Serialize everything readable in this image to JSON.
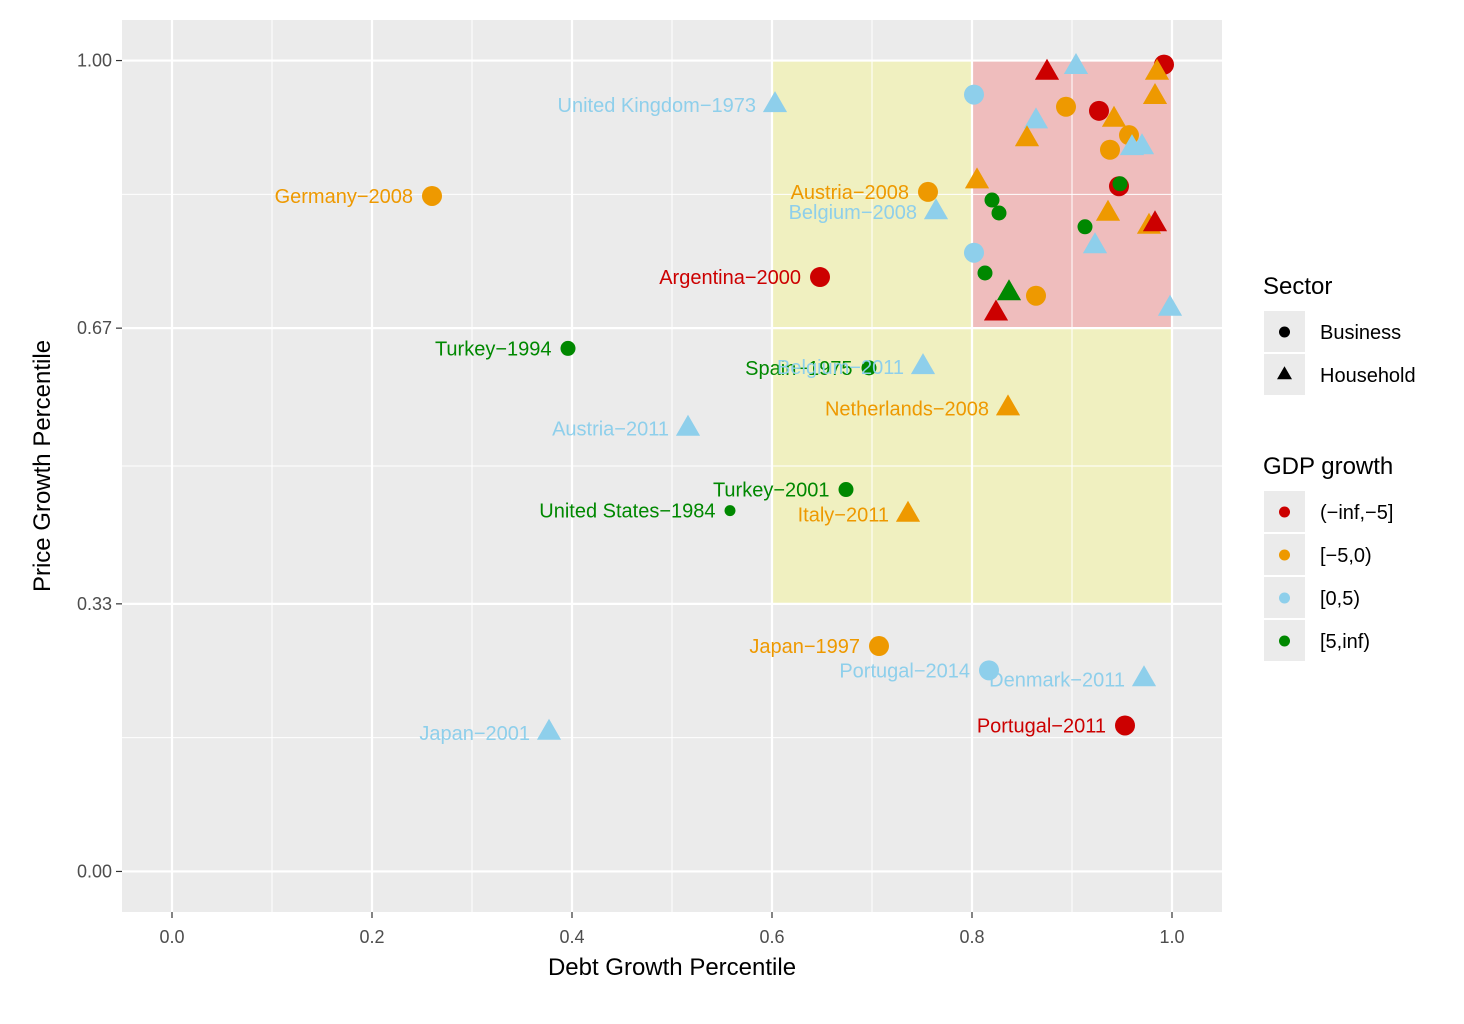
{
  "chart_data": {
    "type": "scatter",
    "xlabel": "Debt Growth Percentile",
    "ylabel": "Price Growth Percentile",
    "xlim": [
      -0.05,
      1.05
    ],
    "ylim": [
      -0.05,
      1.05
    ],
    "x_ticks": [
      0.0,
      0.2,
      0.4,
      0.6,
      0.8,
      1.0
    ],
    "x_tick_labels": [
      "0.0",
      "0.2",
      "0.4",
      "0.6",
      "0.8",
      "1.0"
    ],
    "y_ticks": [
      0.0,
      0.33,
      0.67,
      1.0
    ],
    "y_tick_labels": [
      "0.00",
      "0.33",
      "0.67",
      "1.00"
    ],
    "grid": true,
    "background": "#ebebeb",
    "legend_position": "right",
    "regions": [
      {
        "x": [
          0.6,
          1.0
        ],
        "y": [
          0.33,
          1.0
        ],
        "color": "#f0f0c0"
      },
      {
        "x": [
          0.8,
          1.0
        ],
        "y": [
          0.67,
          1.0
        ],
        "color": "#efbdbd"
      }
    ],
    "colors": {
      "(-inf,-5]": "#cc0000",
      "[-5,0)": "#ee9900",
      "[0,5)": "#8ecfeb",
      "[5,inf)": "#008800"
    },
    "legend_sector": {
      "title": "Sector",
      "items": [
        {
          "label": "Business",
          "shape": "circle"
        },
        {
          "label": "Household",
          "shape": "triangle"
        }
      ]
    },
    "legend_gdp": {
      "title": "GDP growth",
      "items": [
        {
          "label": "(−inf,−5]",
          "key": "(-inf,-5]"
        },
        {
          "label": "[−5,0)",
          "key": "[-5,0)"
        },
        {
          "label": "[0,5)",
          "key": "[0,5)"
        },
        {
          "label": "[5,inf)",
          "key": "[5,inf)"
        }
      ]
    },
    "points": [
      {
        "x": 0.26,
        "y": 0.833,
        "sector": "Business",
        "gdp": "[-5,0)",
        "size": "l",
        "label": "Germany−2008"
      },
      {
        "x": 0.603,
        "y": 0.945,
        "sector": "Household",
        "gdp": "[0,5)",
        "size": "l",
        "label": "United Kingdom−1973"
      },
      {
        "x": 0.756,
        "y": 0.838,
        "sector": "Business",
        "gdp": "[-5,0)",
        "size": "l",
        "label": "Austria−2008"
      },
      {
        "x": 0.764,
        "y": 0.813,
        "sector": "Household",
        "gdp": "[0,5)",
        "size": "l",
        "label": "Belgium−2008"
      },
      {
        "x": 0.648,
        "y": 0.733,
        "sector": "Business",
        "gdp": "(-inf,-5]",
        "size": "l",
        "label": "Argentina−2000"
      },
      {
        "x": 0.396,
        "y": 0.645,
        "sector": "Business",
        "gdp": "[5,inf)",
        "size": "m",
        "label": "Turkey−1994"
      },
      {
        "x": 0.697,
        "y": 0.621,
        "sector": "Business",
        "gdp": "[5,inf)",
        "size": "m",
        "label": "Spain−1975"
      },
      {
        "x": 0.751,
        "y": 0.622,
        "sector": "Household",
        "gdp": "[0,5)",
        "size": "l",
        "label": "Belgium−2011"
      },
      {
        "x": 0.836,
        "y": 0.571,
        "sector": "Household",
        "gdp": "[-5,0)",
        "size": "l",
        "label": "Netherlands−2008"
      },
      {
        "x": 0.516,
        "y": 0.546,
        "sector": "Household",
        "gdp": "[0,5)",
        "size": "l",
        "label": "Austria−2011"
      },
      {
        "x": 0.674,
        "y": 0.471,
        "sector": "Business",
        "gdp": "[5,inf)",
        "size": "m",
        "label": "Turkey−2001"
      },
      {
        "x": 0.558,
        "y": 0.445,
        "sector": "Business",
        "gdp": "[5,inf)",
        "size": "s",
        "label": "United States−1984"
      },
      {
        "x": 0.736,
        "y": 0.44,
        "sector": "Household",
        "gdp": "[-5,0)",
        "size": "l",
        "label": "Italy−2011"
      },
      {
        "x": 0.707,
        "y": 0.278,
        "sector": "Business",
        "gdp": "[-5,0)",
        "size": "l",
        "label": "Japan−1997"
      },
      {
        "x": 0.817,
        "y": 0.248,
        "sector": "Business",
        "gdp": "[0,5)",
        "size": "l",
        "label": "Portugal−2014"
      },
      {
        "x": 0.972,
        "y": 0.237,
        "sector": "Household",
        "gdp": "[0,5)",
        "size": "l",
        "label": "Denmark−2011"
      },
      {
        "x": 0.953,
        "y": 0.18,
        "sector": "Business",
        "gdp": "(-inf,-5]",
        "size": "l",
        "label": "Portugal−2011"
      },
      {
        "x": 0.377,
        "y": 0.171,
        "sector": "Household",
        "gdp": "[0,5)",
        "size": "l",
        "label": "Japan−2001"
      },
      {
        "x": 0.992,
        "y": 0.995,
        "sector": "Business",
        "gdp": "(-inf,-5]",
        "size": "l",
        "label": ""
      },
      {
        "x": 0.985,
        "y": 0.985,
        "sector": "Household",
        "gdp": "[-5,0)",
        "size": "l",
        "label": ""
      },
      {
        "x": 0.875,
        "y": 0.985,
        "sector": "Household",
        "gdp": "(-inf,-5]",
        "size": "l",
        "label": ""
      },
      {
        "x": 0.904,
        "y": 0.992,
        "sector": "Household",
        "gdp": "[0,5)",
        "size": "l",
        "label": ""
      },
      {
        "x": 0.802,
        "y": 0.958,
        "sector": "Business",
        "gdp": "[0,5)",
        "size": "l",
        "label": ""
      },
      {
        "x": 0.983,
        "y": 0.955,
        "sector": "Household",
        "gdp": "[-5,0)",
        "size": "l",
        "label": ""
      },
      {
        "x": 0.894,
        "y": 0.943,
        "sector": "Business",
        "gdp": "[-5,0)",
        "size": "l",
        "label": ""
      },
      {
        "x": 0.927,
        "y": 0.938,
        "sector": "Business",
        "gdp": "(-inf,-5]",
        "size": "l",
        "label": ""
      },
      {
        "x": 0.942,
        "y": 0.927,
        "sector": "Household",
        "gdp": "[-5,0)",
        "size": "l",
        "label": ""
      },
      {
        "x": 0.864,
        "y": 0.925,
        "sector": "Household",
        "gdp": "[0,5)",
        "size": "l",
        "label": ""
      },
      {
        "x": 0.957,
        "y": 0.908,
        "sector": "Business",
        "gdp": "[-5,0)",
        "size": "l",
        "label": ""
      },
      {
        "x": 0.855,
        "y": 0.903,
        "sector": "Household",
        "gdp": "[-5,0)",
        "size": "l",
        "label": ""
      },
      {
        "x": 0.938,
        "y": 0.89,
        "sector": "Business",
        "gdp": "[-5,0)",
        "size": "l",
        "label": ""
      },
      {
        "x": 0.96,
        "y": 0.892,
        "sector": "Household",
        "gdp": "[0,5)",
        "size": "l",
        "label": ""
      },
      {
        "x": 0.97,
        "y": 0.893,
        "sector": "Household",
        "gdp": "[0,5)",
        "size": "l",
        "label": ""
      },
      {
        "x": 0.805,
        "y": 0.851,
        "sector": "Household",
        "gdp": "[-5,0)",
        "size": "l",
        "label": ""
      },
      {
        "x": 0.947,
        "y": 0.845,
        "sector": "Business",
        "gdp": "(-inf,-5]",
        "size": "l",
        "label": ""
      },
      {
        "x": 0.948,
        "y": 0.848,
        "sector": "Business",
        "gdp": "[5,inf)",
        "size": "m",
        "label": ""
      },
      {
        "x": 0.82,
        "y": 0.828,
        "sector": "Business",
        "gdp": "[5,inf)",
        "size": "m",
        "label": ""
      },
      {
        "x": 0.827,
        "y": 0.812,
        "sector": "Business",
        "gdp": "[5,inf)",
        "size": "m",
        "label": ""
      },
      {
        "x": 0.936,
        "y": 0.811,
        "sector": "Household",
        "gdp": "[-5,0)",
        "size": "l",
        "label": ""
      },
      {
        "x": 0.913,
        "y": 0.795,
        "sector": "Business",
        "gdp": "[5,inf)",
        "size": "m",
        "label": ""
      },
      {
        "x": 0.977,
        "y": 0.795,
        "sector": "Household",
        "gdp": "[-5,0)",
        "size": "l",
        "label": ""
      },
      {
        "x": 0.983,
        "y": 0.798,
        "sector": "Household",
        "gdp": "(-inf,-5]",
        "size": "l",
        "label": ""
      },
      {
        "x": 0.802,
        "y": 0.763,
        "sector": "Business",
        "gdp": "[0,5)",
        "size": "l",
        "label": ""
      },
      {
        "x": 0.923,
        "y": 0.771,
        "sector": "Household",
        "gdp": "[0,5)",
        "size": "l",
        "label": ""
      },
      {
        "x": 0.813,
        "y": 0.738,
        "sector": "Business",
        "gdp": "[5,inf)",
        "size": "m",
        "label": ""
      },
      {
        "x": 0.837,
        "y": 0.713,
        "sector": "Household",
        "gdp": "[5,inf)",
        "size": "l",
        "label": ""
      },
      {
        "x": 0.864,
        "y": 0.71,
        "sector": "Business",
        "gdp": "[-5,0)",
        "size": "l",
        "label": ""
      },
      {
        "x": 0.824,
        "y": 0.688,
        "sector": "Household",
        "gdp": "(-inf,-5]",
        "size": "l",
        "label": ""
      },
      {
        "x": 0.998,
        "y": 0.694,
        "sector": "Household",
        "gdp": "[0,5)",
        "size": "l",
        "label": ""
      }
    ]
  }
}
